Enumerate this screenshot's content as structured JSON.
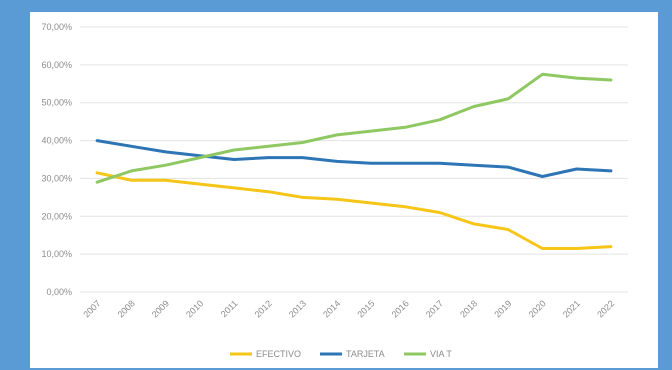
{
  "chart_data": {
    "type": "line",
    "categories": [
      "2007",
      "2008",
      "2009",
      "2010",
      "2011",
      "2012",
      "2013",
      "2014",
      "2015",
      "2016",
      "2017",
      "2018",
      "2019",
      "2020",
      "2021",
      "2022"
    ],
    "yticks": [
      "0,00%",
      "10,00%",
      "20,00%",
      "30,00%",
      "40,00%",
      "50,00%",
      "60,00%",
      "70,00%"
    ],
    "ylim": [
      0,
      70
    ],
    "grid": true,
    "legend_position": "bottom",
    "series": [
      {
        "name": "EFECTIVO",
        "color": "#f5c518",
        "values": [
          31.5,
          29.5,
          29.5,
          28.5,
          27.5,
          26.5,
          25.0,
          24.5,
          23.5,
          22.5,
          21.0,
          18.0,
          16.5,
          11.5,
          11.5,
          12.0
        ]
      },
      {
        "name": "TARJETA",
        "color": "#2e75b6",
        "values": [
          40.0,
          38.5,
          37.0,
          36.0,
          35.0,
          35.5,
          35.5,
          34.5,
          34.0,
          34.0,
          34.0,
          33.5,
          33.0,
          30.5,
          32.5,
          32.0
        ]
      },
      {
        "name": "VIA T",
        "color": "#8fc862",
        "values": [
          29.0,
          32.0,
          33.5,
          35.5,
          37.5,
          38.5,
          39.5,
          41.5,
          42.5,
          43.5,
          45.5,
          49.0,
          51.0,
          57.5,
          56.5,
          56.0
        ]
      }
    ]
  }
}
